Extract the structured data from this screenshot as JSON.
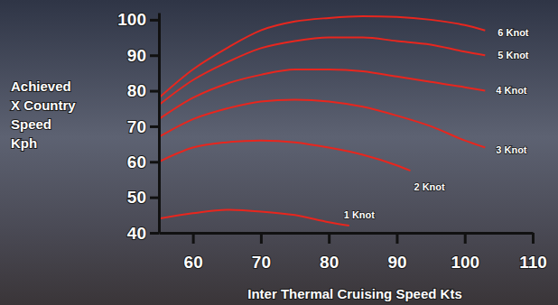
{
  "chart_data": {
    "type": "line",
    "xlabel": "Inter Thermal Cruising Speed Kts",
    "ylabel": [
      "Achieved",
      "X Country",
      "Speed",
      "Kph"
    ],
    "xlim": [
      55,
      110
    ],
    "xticks": [
      60,
      70,
      80,
      90,
      100,
      110
    ],
    "ylim": [
      40,
      102
    ],
    "yticks": [
      40,
      50,
      60,
      70,
      80,
      90,
      100
    ],
    "grid": false,
    "series": [
      {
        "name": "6 Knot",
        "color": "#e8261e",
        "x": [
          55,
          60,
          65,
          70,
          75,
          80,
          85,
          90,
          95,
          100,
          103
        ],
        "values": [
          78,
          86,
          92,
          97,
          99.5,
          100.5,
          101,
          100.8,
          100,
          98.5,
          97
        ]
      },
      {
        "name": "5 Knot",
        "color": "#e8261e",
        "x": [
          55,
          60,
          65,
          70,
          75,
          80,
          85,
          90,
          95,
          100,
          103
        ],
        "values": [
          76,
          83,
          88,
          92,
          94,
          95,
          95,
          94,
          93,
          91,
          90
        ]
      },
      {
        "name": "4 Knot",
        "color": "#e8261e",
        "x": [
          55,
          60,
          65,
          70,
          75,
          80,
          85,
          90,
          95,
          100,
          103
        ],
        "values": [
          72,
          78,
          82,
          84.5,
          86,
          86,
          85.5,
          84,
          82.5,
          81,
          80
        ]
      },
      {
        "name": "3 Knot",
        "color": "#e8261e",
        "x": [
          55,
          60,
          65,
          70,
          75,
          80,
          85,
          90,
          95,
          100,
          103
        ],
        "values": [
          67,
          72,
          75,
          77,
          77.5,
          77,
          75.5,
          73,
          70,
          66,
          64
        ]
      },
      {
        "name": "2 Knot",
        "color": "#e8261e",
        "x": [
          55,
          60,
          65,
          70,
          75,
          80,
          85,
          90,
          92
        ],
        "values": [
          60,
          64,
          65.5,
          66,
          65.5,
          64,
          62,
          59,
          57.5
        ]
      },
      {
        "name": "1 Knot",
        "color": "#e8261e",
        "x": [
          55,
          60,
          65,
          70,
          75,
          80,
          83
        ],
        "values": [
          44,
          45.5,
          46.5,
          46,
          45,
          43,
          42
        ]
      }
    ]
  }
}
